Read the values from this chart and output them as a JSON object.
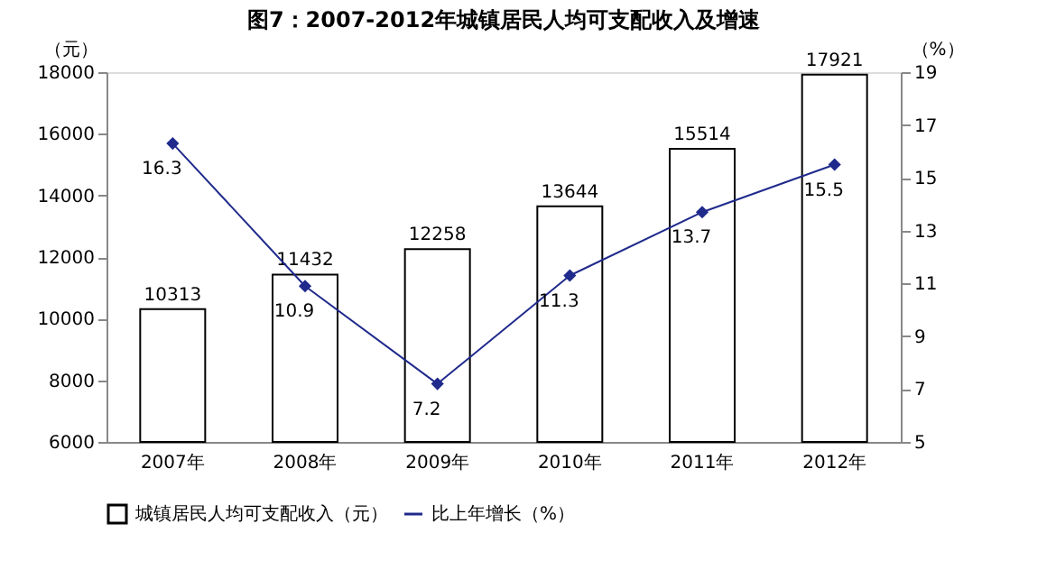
{
  "chart_data": {
    "type": "bar",
    "title": "图7：2007-2012年城镇居民人均可支配收入及增速",
    "categories": [
      "2007年",
      "2008年",
      "2009年",
      "2010年",
      "2011年",
      "2012年"
    ],
    "ylabel": "（元）",
    "y2label": "（%）",
    "ylim": [
      6000,
      18000
    ],
    "yticks": [
      6000,
      8000,
      10000,
      12000,
      14000,
      16000,
      18000
    ],
    "y2lim": [
      5,
      19
    ],
    "y2ticks": [
      5,
      7,
      9,
      11,
      13,
      15,
      17,
      19
    ],
    "series": [
      {
        "name": "城镇居民人均可支配收入（元）",
        "color": "#ffffff",
        "values": [
          10313,
          11432,
          12258,
          13644,
          15514,
          17921
        ]
      },
      {
        "name": "比上年增长（%）",
        "type": "line",
        "axis": "y2",
        "color": "#1f2a8c",
        "marker": "diamond",
        "values": [
          16.3,
          10.9,
          7.2,
          11.3,
          13.7,
          15.5
        ]
      }
    ],
    "data_labels": true,
    "grid": false,
    "legend": "bottom"
  }
}
